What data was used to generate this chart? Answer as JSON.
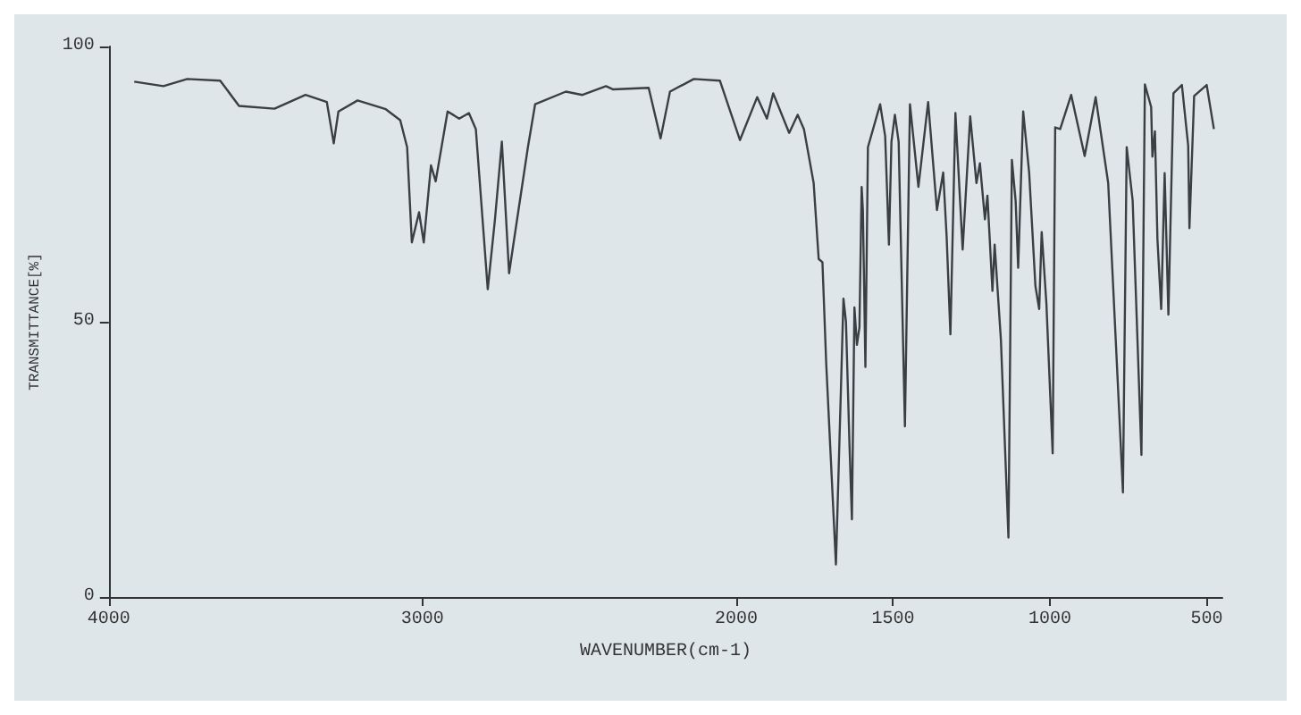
{
  "chart_data": {
    "type": "line",
    "xlabel": "WAVENUMBER(cm-1)",
    "ylabel": "TRANSMITTANCE[%]",
    "x": [
      3919,
      3826,
      3750,
      3645,
      3585,
      3472,
      3373,
      3305,
      3283,
      3268,
      3207,
      3117,
      3071,
      3049,
      3034,
      3011,
      2996,
      2973,
      2958,
      2920,
      2883,
      2852,
      2830,
      2792,
      2769,
      2747,
      2724,
      2694,
      2664,
      2641,
      2543,
      2490,
      2415,
      2392,
      2279,
      2241,
      2211,
      2135,
      2052,
      1988,
      1933,
      1902,
      1882,
      1831,
      1804,
      1784,
      1753,
      1737,
      1725,
      1713,
      1682,
      1666,
      1658,
      1650,
      1639,
      1631,
      1623,
      1615,
      1607,
      1600,
      1596,
      1588,
      1580,
      1541,
      1525,
      1513,
      1505,
      1494,
      1482,
      1462,
      1446,
      1419,
      1388,
      1360,
      1340,
      1329,
      1317,
      1301,
      1278,
      1254,
      1234,
      1223,
      1207,
      1199,
      1183,
      1176,
      1156,
      1132,
      1121,
      1109,
      1101,
      1085,
      1066,
      1046,
      1034,
      1026,
      1011,
      991,
      983,
      967,
      932,
      889,
      854,
      814,
      779,
      767,
      755,
      736,
      708,
      697,
      677,
      673,
      665,
      657,
      645,
      634,
      622,
      606,
      579,
      559,
      555,
      540,
      500,
      477
    ],
    "series": [
      {
        "color": "#3a3f44",
        "values": [
          93.6,
          92.8,
          94.1,
          93.8,
          89.2,
          88.7,
          91.2,
          89.9,
          82.4,
          88.2,
          90.2,
          88.6,
          86.6,
          81.7,
          64.4,
          69.9,
          64.4,
          78.4,
          75.5,
          88.2,
          86.9,
          87.9,
          85,
          55.9,
          68.6,
          82.7,
          58.8,
          70.3,
          81.7,
          89.5,
          91.8,
          91.2,
          92.8,
          92.2,
          92.5,
          83.3,
          91.8,
          94.1,
          93.8,
          83,
          90.8,
          86.9,
          91.5,
          84.3,
          87.6,
          85,
          75.2,
          61.4,
          60.8,
          42.5,
          5.9,
          37.9,
          54.2,
          50,
          28.1,
          14.1,
          52.6,
          45.8,
          49,
          74.5,
          70.3,
          41.8,
          81.7,
          89.5,
          83.7,
          64,
          82.7,
          87.6,
          82.7,
          31,
          89.5,
          74.5,
          89.9,
          70.3,
          77.1,
          65.4,
          47.7,
          87.9,
          63.1,
          87.3,
          75.2,
          78.8,
          68.6,
          72.9,
          55.6,
          64,
          46.7,
          10.8,
          79.4,
          71.9,
          59.8,
          88.2,
          77.1,
          56.5,
          52.3,
          66.3,
          53.3,
          26.1,
          85.3,
          85,
          91.2,
          80.1,
          90.8,
          75.2,
          33.7,
          19,
          81.7,
          72,
          25.8,
          93.1,
          89,
          80,
          84.6,
          65,
          52.3,
          77,
          51.3,
          91.5,
          93,
          82,
          67,
          91,
          93,
          85
        ]
      }
    ],
    "xlim": [
      4000,
      450
    ],
    "xticks": [
      4000,
      3000,
      2000,
      1500,
      1000,
      500
    ],
    "ylim": [
      0,
      100
    ],
    "yticks": [
      0,
      50,
      100
    ],
    "grid": false,
    "marker": "none",
    "line_style": "solid"
  }
}
